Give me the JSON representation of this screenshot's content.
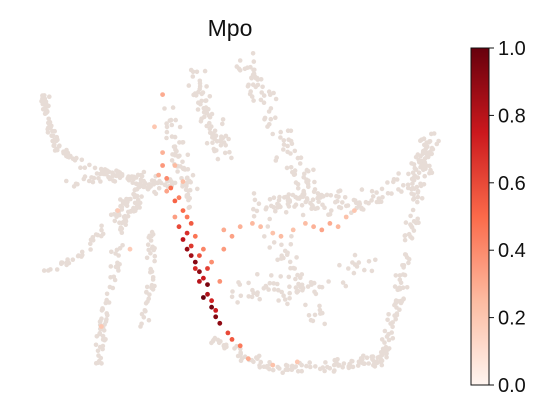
{
  "chart_data": {
    "type": "scatter",
    "title": "Mpo",
    "xlabel": "",
    "ylabel": "",
    "colorbar": {
      "cmap": "Reds",
      "range": [
        0.0,
        1.0
      ],
      "ticks": [
        "0.0",
        "0.2",
        "0.4",
        "0.6",
        "0.8",
        "1.0"
      ]
    },
    "background_color": "#e7dcd6",
    "points": [
      [
        0.43,
        0.25,
        1.0
      ],
      [
        0.44,
        0.29,
        0.95
      ],
      [
        0.42,
        0.33,
        0.9
      ],
      [
        0.41,
        0.36,
        0.92
      ],
      [
        0.45,
        0.22,
        0.97
      ],
      [
        0.39,
        0.4,
        0.88
      ],
      [
        0.46,
        0.19,
        0.93
      ],
      [
        0.4,
        0.38,
        0.85
      ],
      [
        0.42,
        0.3,
        0.8
      ],
      [
        0.44,
        0.26,
        0.82
      ],
      [
        0.38,
        0.43,
        0.78
      ],
      [
        0.47,
        0.17,
        0.9
      ],
      [
        0.43,
        0.31,
        0.75
      ],
      [
        0.41,
        0.34,
        0.7
      ],
      [
        0.45,
        0.24,
        0.72
      ],
      [
        0.39,
        0.45,
        0.68
      ],
      [
        0.4,
        0.41,
        0.65
      ],
      [
        0.46,
        0.21,
        0.74
      ],
      [
        0.37,
        0.47,
        0.6
      ],
      [
        0.44,
        0.34,
        0.63
      ],
      [
        0.42,
        0.38,
        0.58
      ],
      [
        0.4,
        0.48,
        0.55
      ],
      [
        0.38,
        0.52,
        0.5
      ],
      [
        0.36,
        0.55,
        0.52
      ],
      [
        0.35,
        0.59,
        0.48
      ],
      [
        0.39,
        0.5,
        0.45
      ],
      [
        0.41,
        0.44,
        0.47
      ],
      [
        0.37,
        0.56,
        0.43
      ],
      [
        0.34,
        0.62,
        0.4
      ],
      [
        0.33,
        0.66,
        0.36
      ],
      [
        0.43,
        0.4,
        0.42
      ],
      [
        0.45,
        0.36,
        0.39
      ],
      [
        0.48,
        0.4,
        0.35
      ],
      [
        0.5,
        0.44,
        0.33
      ],
      [
        0.47,
        0.3,
        0.38
      ],
      [
        0.36,
        0.5,
        0.34
      ],
      [
        0.34,
        0.58,
        0.32
      ],
      [
        0.49,
        0.14,
        0.6
      ],
      [
        0.5,
        0.12,
        0.55
      ],
      [
        0.52,
        0.1,
        0.45
      ],
      [
        0.48,
        0.46,
        0.3
      ],
      [
        0.52,
        0.47,
        0.28
      ],
      [
        0.55,
        0.48,
        0.26
      ],
      [
        0.57,
        0.47,
        0.24
      ],
      [
        0.6,
        0.45,
        0.22
      ],
      [
        0.62,
        0.44,
        0.25
      ],
      [
        0.65,
        0.46,
        0.22
      ],
      [
        0.68,
        0.48,
        0.24
      ],
      [
        0.7,
        0.47,
        0.28
      ],
      [
        0.72,
        0.46,
        0.32
      ],
      [
        0.74,
        0.48,
        0.3
      ],
      [
        0.76,
        0.47,
        0.26
      ],
      [
        0.78,
        0.5,
        0.22
      ],
      [
        0.8,
        0.52,
        0.2
      ],
      [
        0.33,
        0.7,
        0.28
      ],
      [
        0.32,
        0.63,
        0.3
      ],
      [
        0.36,
        0.66,
        0.25
      ],
      [
        0.38,
        0.61,
        0.24
      ],
      [
        0.31,
        0.78,
        0.2
      ],
      [
        0.54,
        0.06,
        0.3
      ],
      [
        0.6,
        0.04,
        0.22
      ],
      [
        0.66,
        0.05,
        0.2
      ],
      [
        0.22,
        0.52,
        0.18
      ],
      [
        0.25,
        0.4,
        0.18
      ],
      [
        0.18,
        0.16,
        0.2
      ],
      [
        0.33,
        0.88,
        0.3
      ]
    ]
  }
}
